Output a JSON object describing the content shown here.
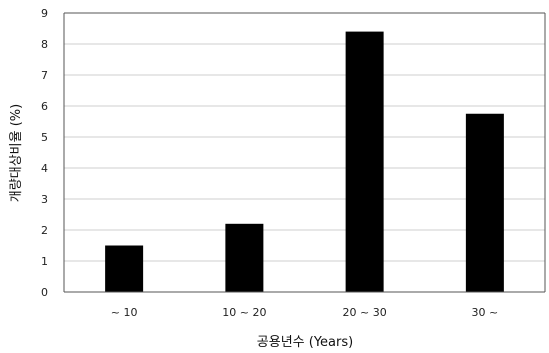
{
  "chart_data": {
    "type": "bar",
    "categories": [
      "~ 10",
      "10 ~ 20",
      "20 ~ 30",
      "30 ~"
    ],
    "values": [
      1.5,
      2.2,
      8.4,
      5.75
    ],
    "title": "",
    "xlabel": "공용년수 (Years)",
    "ylabel": "개량대상비율 (%)",
    "ylim": [
      0,
      9
    ],
    "yticks": [
      0,
      1,
      2,
      3,
      4,
      5,
      6,
      7,
      8,
      9
    ],
    "grid": true,
    "legend": "none",
    "colors": {
      "bar": "#000000",
      "grid": "#cfcfcf",
      "axis": "#555555"
    }
  }
}
